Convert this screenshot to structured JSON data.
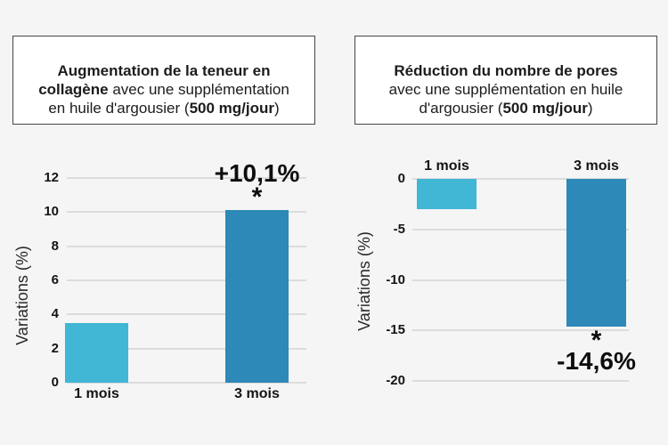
{
  "page": {
    "background": "#f5f5f6",
    "box_border": "#454545",
    "box_background": "#ffffff"
  },
  "colors": {
    "bar_light_blue": "#41b6d5",
    "bar_dark_blue": "#2d89b7",
    "gridline": "#dcdcdc",
    "text": "#141414"
  },
  "left_panel": {
    "title": {
      "bold_lead": "Augmentation de la teneur en\ncollagène",
      "normal_mid": " avec une supplémentation\nen huile d'argousier (",
      "bold_dose": "500 mg/jour",
      "normal_end": ")"
    }
  },
  "right_panel": {
    "title": {
      "bold_lead": "Réduction du nombre de pores",
      "normal_mid": "\navec une supplémentation en huile\nd'argousier (",
      "bold_dose": "500 mg/jour",
      "normal_end": ")"
    }
  },
  "chart_data": [
    {
      "type": "bar",
      "title": "Augmentation de la teneur en collagène avec une supplémentation en huile d'argousier (500 mg/jour)",
      "categories": [
        "1 mois",
        "3 mois"
      ],
      "values": [
        3.5,
        10.1
      ],
      "xlabel": "",
      "ylabel": "Variations (%)",
      "ylim": [
        0,
        12
      ],
      "yticks": [
        12,
        10,
        8,
        6,
        4,
        2,
        0
      ],
      "grid": true,
      "bar_colors": [
        "#41b6d5",
        "#2d89b7"
      ],
      "annotation": {
        "category_index": 1,
        "label": "+10,1%",
        "star": "*",
        "position": "above-bar"
      }
    },
    {
      "type": "bar",
      "title": "Réduction du nombre de pores avec une supplémentation en huile d'argousier (500 mg/jour)",
      "categories": [
        "1 mois",
        "3 mois"
      ],
      "values": [
        -3,
        -14.6
      ],
      "xlabel": "",
      "ylabel": "Variations (%)",
      "ylim": [
        -20,
        0
      ],
      "yticks": [
        0,
        -5,
        -10,
        -15,
        -20
      ],
      "grid": true,
      "bar_colors": [
        "#41b6d5",
        "#2d89b7"
      ],
      "annotation": {
        "category_index": 1,
        "label": "-14,6%",
        "star": "*",
        "position": "below-bar"
      }
    }
  ]
}
